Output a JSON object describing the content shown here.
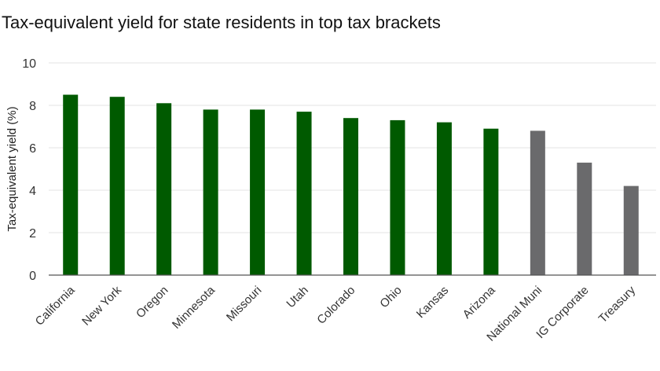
{
  "chart_data": {
    "type": "bar",
    "title": "Tax-equivalent yield for state residents in top tax brackets",
    "xlabel": "",
    "ylabel": "Tax-equivalent yield (%)",
    "ylim": [
      0,
      10
    ],
    "yticks": [
      0,
      2,
      4,
      6,
      8,
      10
    ],
    "grid": true,
    "categories": [
      "California",
      "New York",
      "Oregon",
      "Minnesota",
      "Missouri",
      "Utah",
      "Colorado",
      "Ohio",
      "Kansas",
      "Arizona",
      "National Muni",
      "IG Corporate",
      "Treasury"
    ],
    "values": [
      8.5,
      8.4,
      8.1,
      7.8,
      7.8,
      7.7,
      7.4,
      7.3,
      7.2,
      6.9,
      6.8,
      5.3,
      4.2
    ],
    "bar_colors": [
      "#005a00",
      "#005a00",
      "#005a00",
      "#005a00",
      "#005a00",
      "#005a00",
      "#005a00",
      "#005a00",
      "#005a00",
      "#005a00",
      "#6a6a6c",
      "#6a6a6c",
      "#6a6a6c"
    ]
  }
}
